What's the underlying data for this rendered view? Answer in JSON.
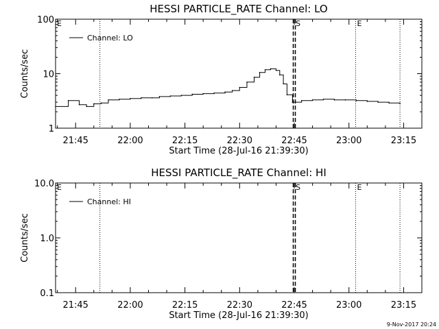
{
  "chart_data": [
    {
      "type": "line",
      "title": "HESSI PARTICLE_RATE Channel: LO",
      "xlabel": "Start Time (28-Jul-16 21:39:30)",
      "ylabel": "Counts/sec",
      "yscale": "log",
      "ylim": [
        1,
        100
      ],
      "yticks": [
        1,
        10,
        100
      ],
      "ytick_labels": [
        "1",
        "10",
        "100"
      ],
      "xlim": [
        "21:39:30",
        "23:20:00"
      ],
      "xticks": [
        "21:45",
        "22:00",
        "22:15",
        "22:30",
        "22:45",
        "23:00",
        "23:15"
      ],
      "legend": {
        "position": "top-left",
        "entries": [
          "Channel: LO"
        ]
      },
      "grid": false,
      "markers": [
        {
          "time": "21:51:40",
          "label": "",
          "style": "dotted"
        },
        {
          "time": "22:45:00",
          "label": "S",
          "style": "dashed"
        },
        {
          "time": "23:01:50",
          "label": "E",
          "style": "dotted"
        },
        {
          "time": "23:14:00",
          "label": "",
          "style": "dotted"
        },
        {
          "time": "21:39:30",
          "label": "E",
          "style": "none"
        }
      ],
      "series": [
        {
          "name": "Channel: LO",
          "x": [
            "21:39:30",
            "21:43:00",
            "21:46:00",
            "21:48:00",
            "21:50:00",
            "21:52:00",
            "21:54:00",
            "21:57:00",
            "22:00:00",
            "22:03:00",
            "22:06:00",
            "22:08:00",
            "22:11:00",
            "22:14:00",
            "22:17:00",
            "22:20:00",
            "22:23:00",
            "22:26:00",
            "22:28:00",
            "22:30:00",
            "22:32:00",
            "22:34:00",
            "22:35:30",
            "22:37:00",
            "22:38:30",
            "22:40:00",
            "22:41:00",
            "22:42:00",
            "22:43:00",
            "22:44:30",
            "22:47:00",
            "22:50:00",
            "22:53:00",
            "22:56:00",
            "22:59:00",
            "23:02:00",
            "23:05:00",
            "23:08:00",
            "23:11:00",
            "23:14:00"
          ],
          "values": [
            2.5,
            3.2,
            2.7,
            2.5,
            2.8,
            2.9,
            3.3,
            3.4,
            3.5,
            3.6,
            3.6,
            3.8,
            3.9,
            4.0,
            4.2,
            4.3,
            4.4,
            4.6,
            4.9,
            5.6,
            7.0,
            8.6,
            10.5,
            11.8,
            12.3,
            11.5,
            9.5,
            6.5,
            4.1,
            3.0,
            3.2,
            3.3,
            3.4,
            3.3,
            3.3,
            3.2,
            3.1,
            3.0,
            2.9,
            2.8
          ]
        }
      ]
    },
    {
      "type": "line",
      "title": "HESSI PARTICLE_RATE Channel: HI",
      "xlabel": "Start Time (28-Jul-16 21:39:30)",
      "ylabel": "Counts/sec",
      "yscale": "log",
      "ylim": [
        0.1,
        10
      ],
      "yticks": [
        0.1,
        1,
        10
      ],
      "ytick_labels": [
        "0.1",
        "1.0",
        "10.0"
      ],
      "xlim": [
        "21:39:30",
        "23:20:00"
      ],
      "xticks": [
        "21:45",
        "22:00",
        "22:15",
        "22:30",
        "22:45",
        "23:00",
        "23:15"
      ],
      "legend": {
        "position": "top-left",
        "entries": [
          "Channel: HI"
        ]
      },
      "grid": false,
      "markers": [
        {
          "time": "21:51:40",
          "label": "",
          "style": "dotted"
        },
        {
          "time": "22:45:00",
          "label": "S",
          "style": "dashed"
        },
        {
          "time": "23:01:50",
          "label": "E",
          "style": "dotted"
        },
        {
          "time": "23:14:00",
          "label": "",
          "style": "dotted"
        },
        {
          "time": "21:39:30",
          "label": "E",
          "style": "none"
        }
      ],
      "series": [
        {
          "name": "Channel: HI",
          "x": [],
          "values": []
        }
      ]
    }
  ],
  "footer": {
    "timestamp": "9-Nov-2017 20:24"
  }
}
